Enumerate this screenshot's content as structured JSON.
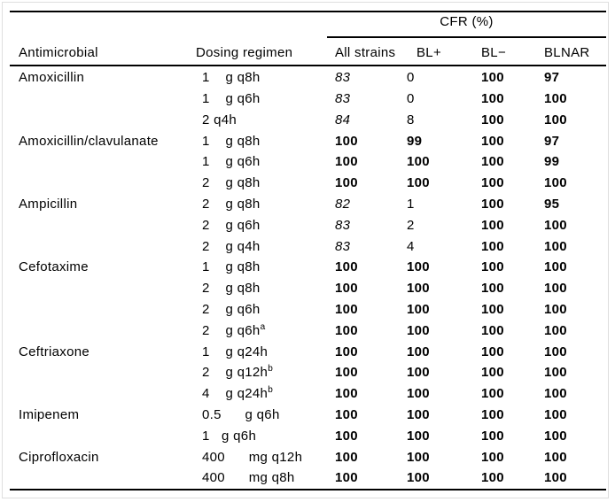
{
  "table": {
    "spanner": "CFR (%)",
    "columns": [
      "Antimicrobial",
      "Dosing regimen",
      "All strains",
      "BL+",
      "BL−",
      "BLNAR"
    ],
    "rows": [
      {
        "drug": "Amoxicillin",
        "dosing": "1    g q8h",
        "sup": "",
        "values": [
          "83",
          "0",
          "100",
          "97"
        ],
        "styles": [
          "i",
          "n",
          "b",
          "b"
        ]
      },
      {
        "drug": "",
        "dosing": "1    g q6h",
        "sup": "",
        "values": [
          "83",
          "0",
          "100",
          "100"
        ],
        "styles": [
          "i",
          "n",
          "b",
          "b"
        ]
      },
      {
        "drug": "",
        "dosing": "2 q4h",
        "sup": "",
        "values": [
          "84",
          "8",
          "100",
          "100"
        ],
        "styles": [
          "i",
          "n",
          "b",
          "b"
        ]
      },
      {
        "drug": "Amoxicillin/clavulanate",
        "dosing": "1    g q8h",
        "sup": "",
        "values": [
          "100",
          "99",
          "100",
          "97"
        ],
        "styles": [
          "b",
          "b",
          "b",
          "b"
        ]
      },
      {
        "drug": "",
        "dosing": "1    g q6h",
        "sup": "",
        "values": [
          "100",
          "100",
          "100",
          "99"
        ],
        "styles": [
          "b",
          "b",
          "b",
          "b"
        ]
      },
      {
        "drug": "",
        "dosing": "2    g q8h",
        "sup": "",
        "values": [
          "100",
          "100",
          "100",
          "100"
        ],
        "styles": [
          "b",
          "b",
          "b",
          "b"
        ]
      },
      {
        "drug": "Ampicillin",
        "dosing": "2    g q8h",
        "sup": "",
        "values": [
          "82",
          "1",
          "100",
          "95"
        ],
        "styles": [
          "i",
          "n",
          "b",
          "b"
        ]
      },
      {
        "drug": "",
        "dosing": "2    g q6h",
        "sup": "",
        "values": [
          "83",
          "2",
          "100",
          "100"
        ],
        "styles": [
          "i",
          "n",
          "b",
          "b"
        ]
      },
      {
        "drug": "",
        "dosing": "2    g q4h",
        "sup": "",
        "values": [
          "83",
          "4",
          "100",
          "100"
        ],
        "styles": [
          "i",
          "n",
          "b",
          "b"
        ]
      },
      {
        "drug": "Cefotaxime",
        "dosing": "1    g q8h",
        "sup": "",
        "values": [
          "100",
          "100",
          "100",
          "100"
        ],
        "styles": [
          "b",
          "b",
          "b",
          "b"
        ]
      },
      {
        "drug": "",
        "dosing": "2    g q8h",
        "sup": "",
        "values": [
          "100",
          "100",
          "100",
          "100"
        ],
        "styles": [
          "b",
          "b",
          "b",
          "b"
        ]
      },
      {
        "drug": "",
        "dosing": "2    g q6h",
        "sup": "",
        "values": [
          "100",
          "100",
          "100",
          "100"
        ],
        "styles": [
          "b",
          "b",
          "b",
          "b"
        ]
      },
      {
        "drug": "",
        "dosing": "2    g q6h",
        "sup": "a",
        "values": [
          "100",
          "100",
          "100",
          "100"
        ],
        "styles": [
          "b",
          "b",
          "b",
          "b"
        ]
      },
      {
        "drug": "Ceftriaxone",
        "dosing": "1    g q24h",
        "sup": "",
        "values": [
          "100",
          "100",
          "100",
          "100"
        ],
        "styles": [
          "b",
          "b",
          "b",
          "b"
        ]
      },
      {
        "drug": "",
        "dosing": "2    g q12h",
        "sup": "b",
        "values": [
          "100",
          "100",
          "100",
          "100"
        ],
        "styles": [
          "b",
          "b",
          "b",
          "b"
        ]
      },
      {
        "drug": "",
        "dosing": "4    g q24h",
        "sup": "b",
        "values": [
          "100",
          "100",
          "100",
          "100"
        ],
        "styles": [
          "b",
          "b",
          "b",
          "b"
        ]
      },
      {
        "drug": "Imipenem",
        "dosing": "0.5      g q6h",
        "sup": "",
        "values": [
          "100",
          "100",
          "100",
          "100"
        ],
        "styles": [
          "b",
          "b",
          "b",
          "b"
        ]
      },
      {
        "drug": "",
        "dosing": "1   g q6h",
        "sup": "",
        "values": [
          "100",
          "100",
          "100",
          "100"
        ],
        "styles": [
          "b",
          "b",
          "b",
          "b"
        ]
      },
      {
        "drug": "Ciprofloxacin",
        "dosing": "400      mg q12h",
        "sup": "",
        "values": [
          "100",
          "100",
          "100",
          "100"
        ],
        "styles": [
          "b",
          "b",
          "b",
          "b"
        ]
      },
      {
        "drug": "",
        "dosing": "400      mg q8h",
        "sup": "",
        "values": [
          "100",
          "100",
          "100",
          "100"
        ],
        "styles": [
          "b",
          "b",
          "b",
          "b"
        ]
      }
    ]
  },
  "colors": {
    "text": "#000000",
    "rule": "#000000",
    "frame": "#dedede",
    "background": "#ffffff"
  }
}
